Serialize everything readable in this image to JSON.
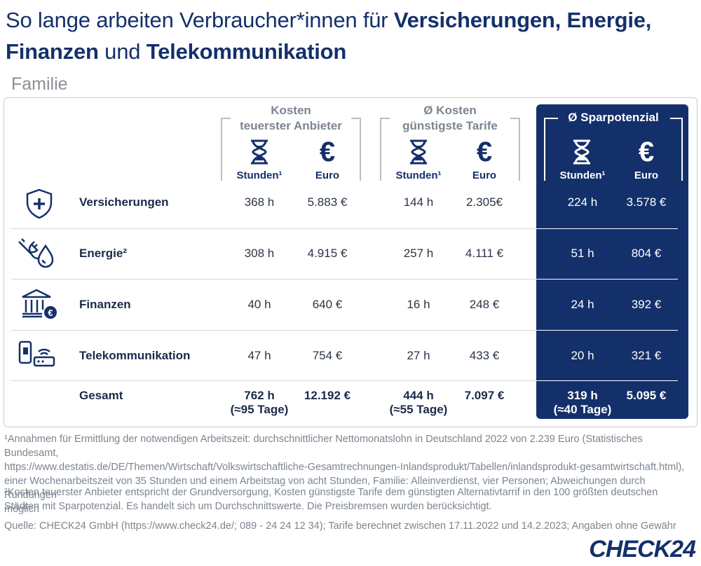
{
  "title": {
    "prefix": "So lange arbeiten Verbraucher*innen für ",
    "bold1": "Versicherungen, Energie,",
    "bold2": "Finanzen",
    "mid": " und ",
    "bold3": "Telekommunikation"
  },
  "subtitle": "Familie",
  "groups": [
    {
      "line1": "Kosten",
      "line2": "teuerster Anbieter"
    },
    {
      "line1": "Ø Kosten",
      "line2": "günstigste Tarife"
    },
    {
      "line1": "Ø Sparpotenzial",
      "line2": ""
    }
  ],
  "units": {
    "hours": "Stunden¹",
    "euro": "Euro"
  },
  "icons": {
    "hourglass": "hourglass-icon",
    "euro_symbol": "€",
    "rows": [
      "shield-plus-icon",
      "plug-drop-icon",
      "bank-euro-icon",
      "phone-router-icon"
    ]
  },
  "rows": [
    {
      "label": "Versicherungen",
      "values": [
        "368 h",
        "5.883 €",
        "144 h",
        "2.305€",
        "224 h",
        "3.578 €"
      ]
    },
    {
      "label": "Energie²",
      "values": [
        "308 h",
        "4.915 €",
        "257 h",
        "4.111 €",
        "51 h",
        "804 €"
      ]
    },
    {
      "label": "Finanzen",
      "values": [
        "40 h",
        "640 €",
        "16 h",
        "248 €",
        "24 h",
        "392 €"
      ]
    },
    {
      "label": "Telekommunikation",
      "values": [
        "47 h",
        "754 €",
        "27 h",
        "433 €",
        "20 h",
        "321 €"
      ]
    }
  ],
  "total": {
    "label": "Gesamt",
    "cells": [
      {
        "l1": "762 h",
        "l2": "(≈95 Tage)"
      },
      {
        "l1": "12.192 €",
        "l2": ""
      },
      {
        "l1": "444 h",
        "l2": "(≈55 Tage)"
      },
      {
        "l1": "7.097 €",
        "l2": ""
      },
      {
        "l1": "319 h",
        "l2": "(≈40 Tage)"
      },
      {
        "l1": "5.095 €",
        "l2": ""
      }
    ]
  },
  "footnotes": {
    "f1_l1": "¹Annahmen für Ermittlung der notwendigen Arbeitszeit: durchschnittlicher Nettomonatslohn in Deutschland 2022 von 2.239 Euro (Statistisches Bundesamt,",
    "f1_l2": "https://www.destatis.de/DE/Themen/Wirtschaft/Volkswirtschaftliche-Gesamtrechnungen-Inlandsprodukt/Tabellen/inlandsprodukt-gesamtwirtschaft.html),",
    "f1_l3": "einer Wochenarbeitszeit von 35 Stunden und einem Arbeitstag von acht Stunden, Familie: Alleinverdienst, vier Personen; Abweichungen durch Rundungen",
    "f1_l4": "möglich",
    "f2_l1": "²Kosten teuerster Anbieter entspricht der Grundversorgung, Kosten günstigste Tarife dem günstigten Alternativtarrif in den 100 größten deutschen",
    "f2_l2": "Städten mit Sparpotenzial.  Es handelt sich um Durchschnittswerte. Die Preisbremsen wurden berücksichtigt."
  },
  "source": "Quelle: CHECK24 GmbH (https://www.check24.de/; 089 - 24 24 12 34); Tarife berechnet zwischen 17.11.2022 und 14.2.2023; Angaben ohne Gewähr",
  "logo": "CHECK24",
  "colors": {
    "navy": "#14306b",
    "grey": "#7c8590",
    "white": "#ffffff"
  }
}
